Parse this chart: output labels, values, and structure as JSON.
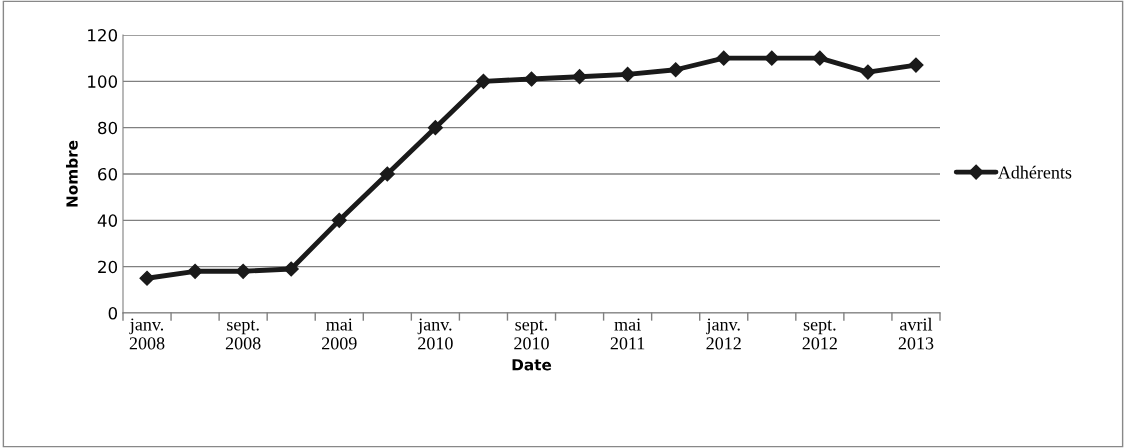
{
  "chart_data": {
    "type": "line",
    "xlabel": "Date",
    "ylabel": "Nombre",
    "categories": [
      "janv.\n2008",
      null,
      "sept.\n2008",
      null,
      "mai\n2009",
      null,
      "janv.\n2010",
      null,
      "sept.\n2010",
      null,
      "mai\n2011",
      null,
      "janv.\n2012",
      null,
      "sept.\n2012",
      null,
      "avril\n2013"
    ],
    "series": [
      {
        "name": "Adhérents",
        "color": "#1a1a1a",
        "values": [
          15,
          18,
          18,
          19,
          40,
          60,
          80,
          100,
          101,
          102,
          103,
          105,
          110,
          110,
          110,
          104,
          107
        ]
      }
    ],
    "ylim": [
      0,
      120
    ],
    "yticks": [
      0,
      20,
      40,
      60,
      80,
      100,
      120
    ],
    "grid": "y",
    "legend": "right",
    "marker": "diamond",
    "line_style": "solid"
  }
}
